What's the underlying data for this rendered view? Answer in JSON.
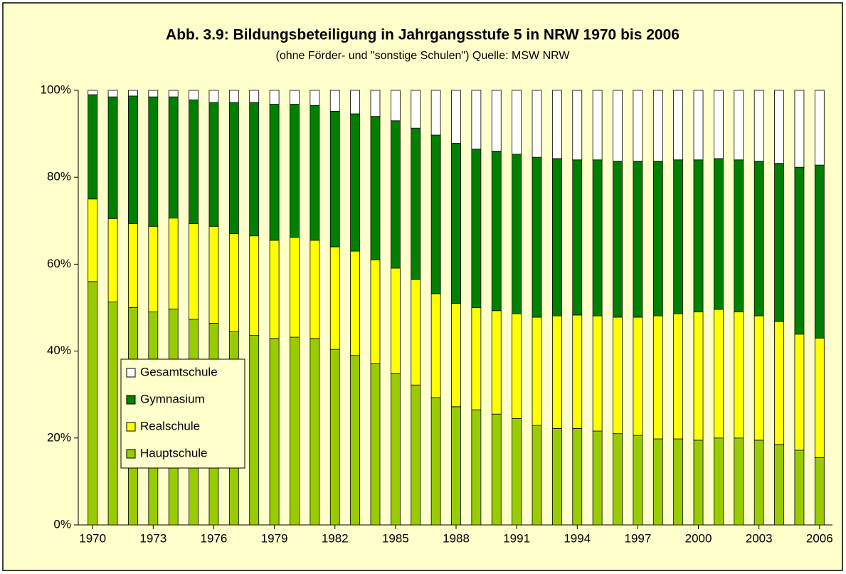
{
  "chart_data": {
    "type": "stacked_bar",
    "title": "Abb. 3.9: Bildungsbeteiligung in Jahrgangsstufe 5 in NRW 1970 bis 2006",
    "subtitle": "(ohne Förder- und \"sonstige Schulen\")  Quelle: MSW NRW",
    "categories": [
      "1970",
      null,
      null,
      "1973",
      null,
      null,
      "1976",
      null,
      null,
      "1979",
      null,
      null,
      "1982",
      null,
      null,
      "1985",
      null,
      null,
      "1988",
      null,
      null,
      "1991",
      null,
      null,
      "1994",
      null,
      null,
      "1997",
      null,
      null,
      "2000",
      null,
      null,
      "2003",
      null,
      null,
      "2006"
    ],
    "series": [
      {
        "name": "Hauptschule",
        "color": "#99cc00",
        "values": [
          56,
          51.3,
          50,
          49,
          49.7,
          47.3,
          46.4,
          44.5,
          43.6,
          42.9,
          43.2,
          42.9,
          40.4,
          39,
          37.1,
          34.8,
          32.2,
          29.3,
          27.2,
          26.5,
          25.5,
          24.5,
          22.9,
          22.2,
          22.2,
          21.6,
          21,
          20.6,
          19.8,
          19.8,
          19.5,
          20,
          20,
          19.5,
          18.5,
          17.2,
          15.5
        ]
      },
      {
        "name": "Realschule",
        "color": "#ffff00",
        "values": [
          19,
          19.2,
          19.3,
          19.7,
          20.9,
          22,
          22.3,
          22.5,
          22.9,
          22.6,
          23,
          22.6,
          23.6,
          24,
          23.9,
          24.3,
          24.3,
          23.9,
          23.8,
          23.5,
          23.8,
          24.1,
          24.9,
          25.9,
          26.1,
          26.5,
          26.8,
          27.2,
          28.3,
          28.8,
          29.5,
          29.6,
          29,
          28.6,
          28.3,
          26.7,
          27.5
        ]
      },
      {
        "name": "Gymnasium",
        "color": "#008000",
        "values": [
          24,
          28,
          29.4,
          29.8,
          27.9,
          28.5,
          28.5,
          30.2,
          30.7,
          31.3,
          30.6,
          31,
          31.2,
          31.6,
          33,
          33.9,
          34.8,
          36.5,
          36.8,
          36.5,
          36.7,
          36.7,
          36.8,
          36.2,
          35.7,
          35.9,
          35.9,
          35.9,
          35.6,
          35.4,
          35,
          34.7,
          35,
          35.6,
          36.4,
          38.4,
          39.8
        ]
      },
      {
        "name": "Gesamtschule",
        "color": "#ffffff",
        "values": [
          1,
          1.5,
          1.3,
          1.5,
          1.5,
          2.2,
          2.8,
          2.8,
          2.8,
          3.2,
          3.2,
          3.5,
          4.8,
          5.4,
          6,
          7,
          8.7,
          10.3,
          12.2,
          13.5,
          14,
          14.7,
          15.4,
          15.7,
          16,
          16,
          16.3,
          16.3,
          16.3,
          16,
          16,
          15.7,
          16,
          16.3,
          16.8,
          17.7,
          17.2
        ]
      }
    ],
    "ylim": [
      0,
      100
    ],
    "yticks": [
      {
        "value": 0,
        "label": "0%"
      },
      {
        "value": 20,
        "label": "20%"
      },
      {
        "value": 40,
        "label": "40%"
      },
      {
        "value": 60,
        "label": "60%"
      },
      {
        "value": 80,
        "label": "80%"
      },
      {
        "value": 100,
        "label": "100%"
      }
    ],
    "legend": "lower left"
  }
}
